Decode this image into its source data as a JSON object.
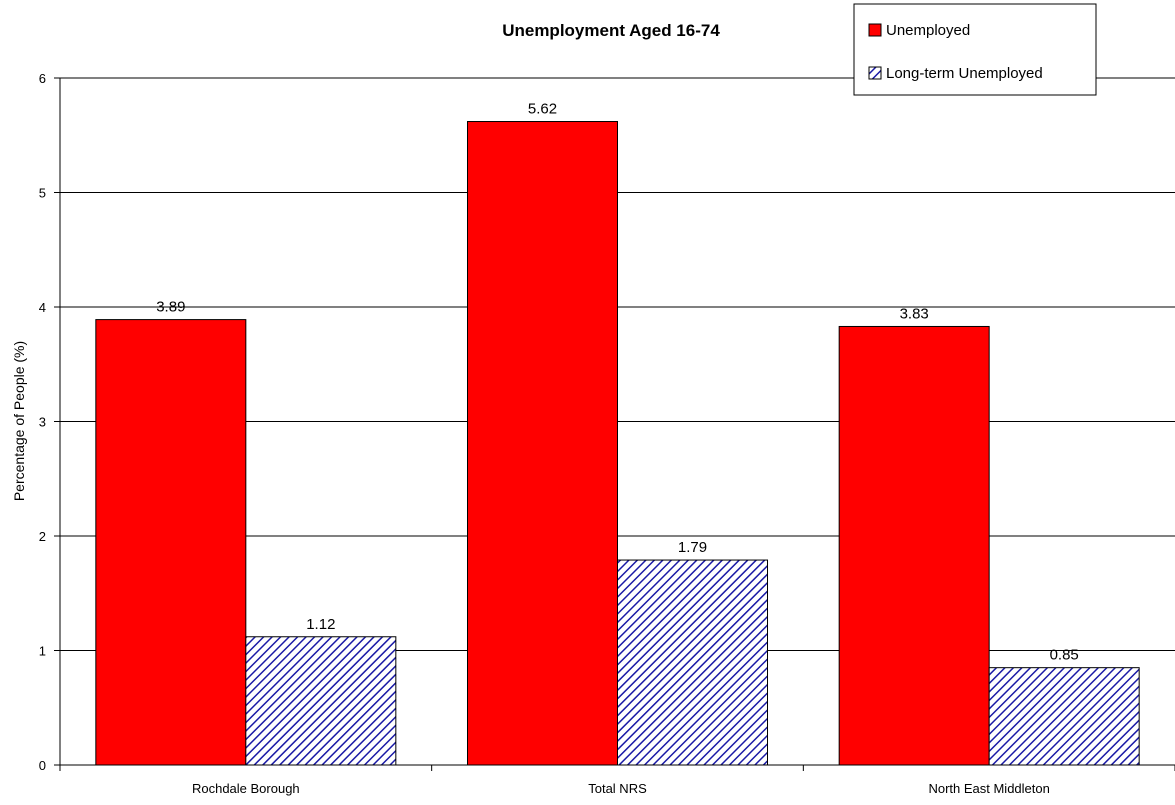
{
  "chart_data": {
    "type": "bar",
    "title": "Unemployment Aged 16-74",
    "xlabel": "",
    "ylabel": "Percentage of People (%)",
    "ylim": [
      0,
      6
    ],
    "yticks": [
      0,
      1,
      2,
      3,
      4,
      5,
      6
    ],
    "grid": true,
    "legend_position": "top-right",
    "categories": [
      "Rochdale Borough",
      "Total NRS",
      "North East Middleton"
    ],
    "series": [
      {
        "name": "Unemployed",
        "values": [
          3.89,
          5.62,
          3.83
        ],
        "color": "#ff0000",
        "pattern": "solid"
      },
      {
        "name": "Long-term Unemployed",
        "values": [
          1.12,
          1.79,
          0.85
        ],
        "color": "#1a1aa6",
        "pattern": "diagonal-hatch"
      }
    ]
  }
}
